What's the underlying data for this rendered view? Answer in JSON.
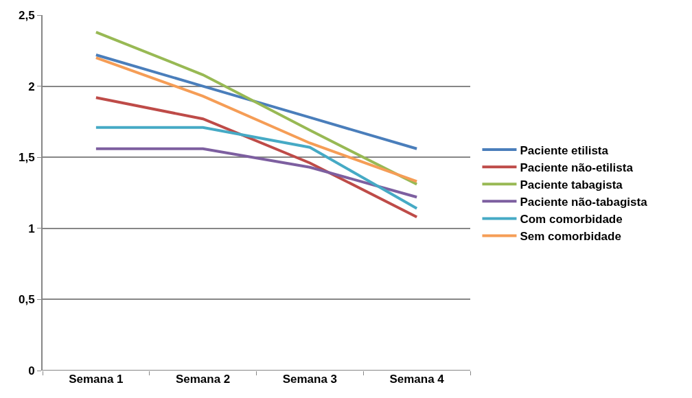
{
  "chart_data": {
    "type": "line",
    "categories": [
      "Semana 1",
      "Semana 2",
      "Semana 3",
      "Semana 4"
    ],
    "series": [
      {
        "name": "Paciente etilista",
        "color": "#4a7ebb",
        "values": [
          2.22,
          2.0,
          1.78,
          1.56
        ]
      },
      {
        "name": "Paciente não-etilista",
        "color": "#be4b48",
        "values": [
          1.92,
          1.77,
          1.46,
          1.08
        ]
      },
      {
        "name": "Paciente tabagista",
        "color": "#98b954",
        "values": [
          2.38,
          2.08,
          1.69,
          1.31
        ]
      },
      {
        "name": "Paciente não-tabagista",
        "color": "#7d5fa0",
        "values": [
          1.56,
          1.56,
          1.43,
          1.22
        ]
      },
      {
        "name": "Com comorbidade",
        "color": "#46aac5",
        "values": [
          1.71,
          1.71,
          1.57,
          1.14
        ]
      },
      {
        "name": "Sem comorbidade",
        "color": "#f59d56",
        "values": [
          2.2,
          1.93,
          1.6,
          1.33
        ]
      }
    ],
    "ylim": [
      0,
      2.5
    ],
    "yticks": [
      {
        "value": 0,
        "label": "0"
      },
      {
        "value": 0.5,
        "label": "0,5"
      },
      {
        "value": 1,
        "label": "1"
      },
      {
        "value": 1.5,
        "label": "1,5"
      },
      {
        "value": 2,
        "label": "2"
      },
      {
        "value": 2.5,
        "label": "2,5"
      }
    ],
    "grid": "y",
    "legend": "right",
    "marker": "none",
    "line_style": "solid"
  }
}
